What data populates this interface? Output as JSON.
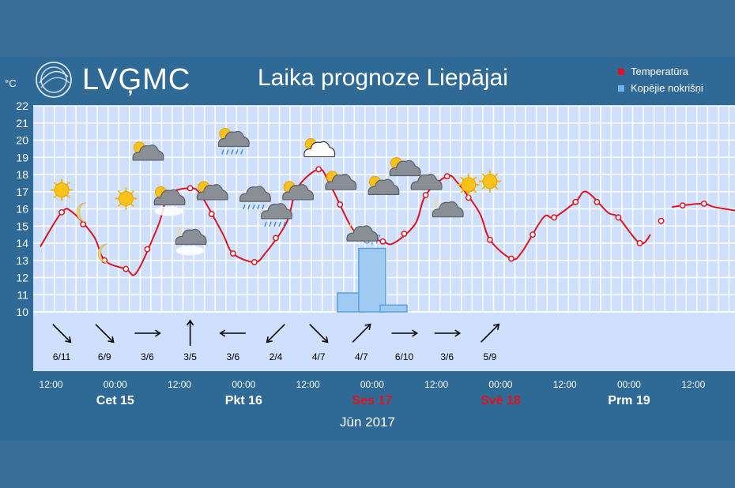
{
  "header": {
    "logo_text": "LVĢMC",
    "title": "Laika prognoze Liepājai",
    "unit": "°C"
  },
  "legend": [
    {
      "label": "Temperatūra",
      "color": "#e0141e"
    },
    {
      "label": "Kopējie nokrišņi",
      "color": "#6eb4f0"
    }
  ],
  "month_label": "Jūn 2017",
  "colors": {
    "temp_line": "#e0141e",
    "precip_bar": "#9fcaf2",
    "grid_bg": "#cfe0ff",
    "grid_line": "#ffffff"
  },
  "chart_data": {
    "type": "line",
    "ylim": [
      10,
      22
    ],
    "yticks": [
      10,
      11,
      12,
      13,
      14,
      15,
      16,
      17,
      18,
      19,
      20,
      21,
      22
    ],
    "x_tick_labels": [
      "12:00",
      "00:00",
      "12:00",
      "00:00",
      "12:00",
      "00:00",
      "12:00",
      "00:00",
      "12:00",
      "00:00",
      "12:00"
    ],
    "day_labels": [
      {
        "label": "Cet 15",
        "weekend": false
      },
      {
        "label": "Pkt 16",
        "weekend": false
      },
      {
        "label": "Ses 17",
        "weekend": true
      },
      {
        "label": "Svē 18",
        "weekend": true
      },
      {
        "label": "Prm 19",
        "weekend": false
      }
    ],
    "series": [
      {
        "name": "Temperatūra",
        "x_hours": [
          0,
          6,
          9,
          15,
          18,
          24,
          27,
          33,
          36,
          42,
          45,
          51,
          54,
          60,
          63,
          69,
          72,
          78,
          81,
          87,
          90,
          96,
          99,
          105,
          108,
          114,
          117,
          123,
          126,
          132,
          135,
          141,
          144,
          150,
          153,
          159,
          162,
          168,
          171
        ],
        "values": [
          13.8,
          15.8,
          15.8,
          14.4,
          13.0,
          12.5,
          12.3,
          15.0,
          16.8,
          17.2,
          16.8,
          14.6,
          13.4,
          12.9,
          13.4,
          15.2,
          17.2,
          18.3,
          17.5,
          15.0,
          14.5,
          14.1,
          14.0,
          15.1,
          16.8,
          17.9,
          17.5,
          15.8,
          14.2,
          13.1,
          13.5,
          15.5,
          15.5,
          16.4,
          17.0,
          15.8,
          15.5,
          14.0,
          14.5
        ]
      },
      {
        "name": "Temperatūra (turpinājums)",
        "x_hours": [
          177,
          180,
          186,
          189,
          198
        ],
        "values": [
          16.1,
          16.2,
          16.3,
          16.1,
          15.8
        ]
      }
    ],
    "precipitation": [
      {
        "x_hours": 87,
        "value": 1.1
      },
      {
        "x_hours": 93,
        "value": 3.7,
        "label": "3,7"
      },
      {
        "x_hours": 99,
        "value": 0.4
      }
    ],
    "marker_hours": [
      6,
      12,
      18,
      24,
      30,
      36,
      42,
      48,
      54,
      60,
      66,
      72,
      78,
      84,
      90,
      96,
      102,
      108,
      114,
      120,
      126,
      132,
      138,
      144,
      150,
      156,
      162,
      168,
      174,
      180,
      186
    ],
    "weather_icons": [
      {
        "x_hours": 6,
        "value": 17.1,
        "icon": "sun"
      },
      {
        "x_hours": 12,
        "value": 15.8,
        "icon": "moon"
      },
      {
        "x_hours": 18,
        "value": 13.4,
        "icon": "moon"
      },
      {
        "x_hours": 24,
        "value": 16.6,
        "icon": "sun"
      },
      {
        "x_hours": 30,
        "value": 19.2,
        "icon": "cloud-sun"
      },
      {
        "x_hours": 36,
        "value": 16.6,
        "icon": "cloud-sun-fog"
      },
      {
        "x_hours": 42,
        "value": 14.3,
        "icon": "cloud-moon-fog"
      },
      {
        "x_hours": 48,
        "value": 16.9,
        "icon": "cloud-sun"
      },
      {
        "x_hours": 54,
        "value": 20.0,
        "icon": "cloud-sun-rain"
      },
      {
        "x_hours": 60,
        "value": 16.8,
        "icon": "cloud-rain"
      },
      {
        "x_hours": 66,
        "value": 15.8,
        "icon": "cloud-rain"
      },
      {
        "x_hours": 72,
        "value": 16.9,
        "icon": "cloud-sun"
      },
      {
        "x_hours": 78,
        "value": 19.4,
        "icon": "cloud-sun-white"
      },
      {
        "x_hours": 84,
        "value": 17.5,
        "icon": "cloud-sun"
      },
      {
        "x_hours": 90,
        "value": 14.5,
        "icon": "cloud-moon"
      },
      {
        "x_hours": 96,
        "value": 17.2,
        "icon": "cloud-sun"
      },
      {
        "x_hours": 102,
        "value": 18.3,
        "icon": "cloud-sun"
      },
      {
        "x_hours": 108,
        "value": 17.5,
        "icon": "cloud"
      },
      {
        "x_hours": 114,
        "value": 15.9,
        "icon": "cloud-moon"
      },
      {
        "x_hours": 120,
        "value": 17.4,
        "icon": "sun"
      },
      {
        "x_hours": 126,
        "value": 17.6,
        "icon": "sun"
      }
    ],
    "wind": [
      {
        "x_hours": 6,
        "label": "6/11",
        "to_deg": 135
      },
      {
        "x_hours": 18,
        "label": "6/9",
        "to_deg": 135
      },
      {
        "x_hours": 30,
        "label": "3/6",
        "to_deg": 90
      },
      {
        "x_hours": 42,
        "label": "3/5",
        "to_deg": 0
      },
      {
        "x_hours": 54,
        "label": "3/6",
        "to_deg": 270
      },
      {
        "x_hours": 66,
        "label": "2/4",
        "to_deg": 225
      },
      {
        "x_hours": 78,
        "label": "4/7",
        "to_deg": 135
      },
      {
        "x_hours": 90,
        "label": "4/7",
        "to_deg": 45
      },
      {
        "x_hours": 102,
        "label": "6/10",
        "to_deg": 90
      },
      {
        "x_hours": 114,
        "label": "3/6",
        "to_deg": 90
      },
      {
        "x_hours": 126,
        "label": "5/9",
        "to_deg": 45
      }
    ]
  }
}
